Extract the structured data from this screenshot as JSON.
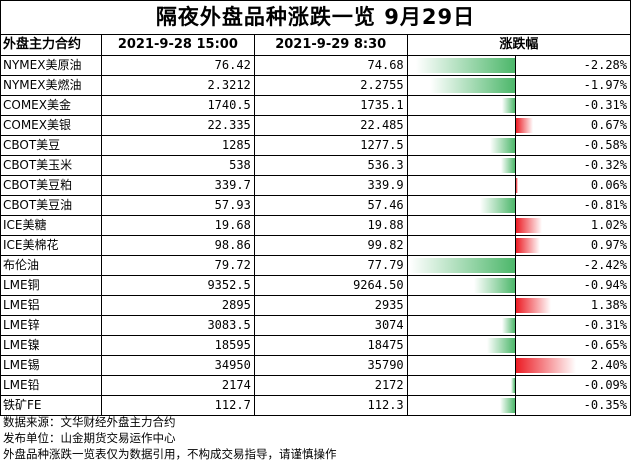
{
  "title": "隔夜外盘品种涨跌一览  9月29日",
  "headers": [
    "外盘主力合约",
    "2021-9-28 15:00",
    "2021-9-29 8:30",
    "涨跌幅"
  ],
  "chart_data": {
    "type": "table",
    "rows": [
      {
        "name": "NYMEX美原油",
        "prev": "76.42",
        "curr": "74.68",
        "change": -2.28,
        "change_label": "-2.28%"
      },
      {
        "name": "NYMEX美燃油",
        "prev": "2.3212",
        "curr": "2.2755",
        "change": -1.97,
        "change_label": "-1.97%"
      },
      {
        "name": "COMEX美金",
        "prev": "1740.5",
        "curr": "1735.1",
        "change": -0.31,
        "change_label": "-0.31%"
      },
      {
        "name": "COMEX美银",
        "prev": "22.335",
        "curr": "22.485",
        "change": 0.67,
        "change_label": "0.67%"
      },
      {
        "name": "CBOT美豆",
        "prev": "1285",
        "curr": "1277.5",
        "change": -0.58,
        "change_label": "-0.58%"
      },
      {
        "name": "CBOT美玉米",
        "prev": "538",
        "curr": "536.3",
        "change": -0.32,
        "change_label": "-0.32%"
      },
      {
        "name": "CBOT美豆粕",
        "prev": "339.7",
        "curr": "339.9",
        "change": 0.06,
        "change_label": "0.06%"
      },
      {
        "name": "CBOT美豆油",
        "prev": "57.93",
        "curr": "57.46",
        "change": -0.81,
        "change_label": "-0.81%"
      },
      {
        "name": "ICE美糖",
        "prev": "19.68",
        "curr": "19.88",
        "change": 1.02,
        "change_label": "1.02%"
      },
      {
        "name": "ICE美棉花",
        "prev": "98.86",
        "curr": "99.82",
        "change": 0.97,
        "change_label": "0.97%"
      },
      {
        "name": "布伦油",
        "prev": "79.72",
        "curr": "77.79",
        "change": -2.42,
        "change_label": "-2.42%"
      },
      {
        "name": "LME铜",
        "prev": "9352.5",
        "curr": "9264.50",
        "change": -0.94,
        "change_label": "-0.94%"
      },
      {
        "name": "LME铝",
        "prev": "2895",
        "curr": "2935",
        "change": 1.38,
        "change_label": "1.38%"
      },
      {
        "name": "LME锌",
        "prev": "3083.5",
        "curr": "3074",
        "change": -0.31,
        "change_label": "-0.31%"
      },
      {
        "name": "LME镍",
        "prev": "18595",
        "curr": "18475",
        "change": -0.65,
        "change_label": "-0.65%"
      },
      {
        "name": "LME锡",
        "prev": "34950",
        "curr": "35790",
        "change": 2.4,
        "change_label": "2.40%"
      },
      {
        "name": "LME铅",
        "prev": "2174",
        "curr": "2172",
        "change": -0.09,
        "change_label": "-0.09%"
      },
      {
        "name": "铁矿FE",
        "prev": "112.7",
        "curr": "112.3",
        "change": -0.35,
        "change_label": "-0.35%"
      }
    ],
    "change_range": [
      -2.42,
      2.4
    ],
    "colors": {
      "negative": "#4cb76a",
      "positive": "#ec1c24"
    }
  },
  "footer": [
    "数据来源：文华财经外盘主力合约",
    "发布单位：山金期货交易运作中心",
    "外盘品种涨跌一览表仅为数据引用，不构成交易指导，请谨慎操作"
  ]
}
